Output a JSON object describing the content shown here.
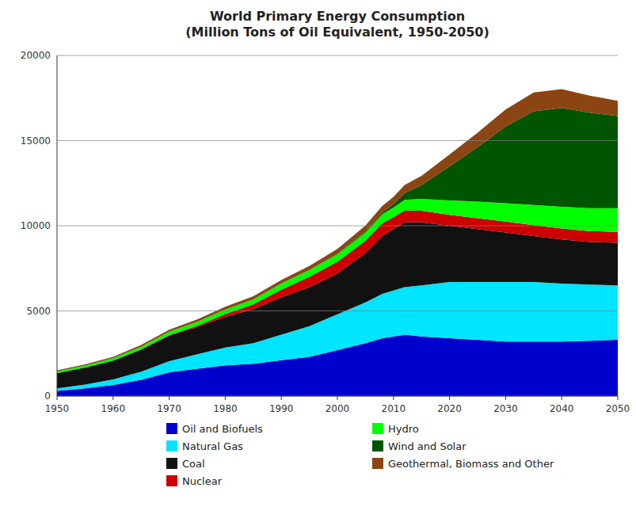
{
  "chart_data": {
    "type": "area",
    "stacked": true,
    "title": "World Primary Energy Consumption\n(Million Tons of Oil Equivalent, 1950-2050)",
    "x": [
      1950,
      1955,
      1960,
      1965,
      1970,
      1975,
      1980,
      1985,
      1990,
      1995,
      2000,
      2005,
      2008,
      2010,
      2012,
      2015,
      2020,
      2025,
      2030,
      2035,
      2040,
      2045,
      2050
    ],
    "series": [
      {
        "name": "Oil and Biofuels",
        "color": "#0000CC",
        "values": [
          300,
          450,
          650,
          950,
          1400,
          1600,
          1800,
          1900,
          2100,
          2300,
          2700,
          3100,
          3400,
          3500,
          3600,
          3500,
          3400,
          3300,
          3200,
          3200,
          3200,
          3250,
          3300
        ]
      },
      {
        "name": "Natural Gas",
        "color": "#00E5FF",
        "values": [
          150,
          220,
          330,
          480,
          650,
          850,
          1050,
          1200,
          1500,
          1800,
          2100,
          2400,
          2600,
          2700,
          2800,
          3000,
          3300,
          3400,
          3500,
          3500,
          3400,
          3300,
          3200
        ]
      },
      {
        "name": "Coal",
        "color": "#111111",
        "values": [
          900,
          1000,
          1100,
          1300,
          1500,
          1600,
          1800,
          2000,
          2200,
          2300,
          2400,
          2900,
          3400,
          3600,
          3800,
          3700,
          3300,
          3100,
          2900,
          2700,
          2600,
          2500,
          2500
        ]
      },
      {
        "name": "Nuclear",
        "color": "#CC0000",
        "values": [
          0,
          0,
          5,
          10,
          30,
          80,
          160,
          280,
          450,
          600,
          680,
          720,
          740,
          700,
          700,
          680,
          640,
          640,
          640,
          640,
          640,
          640,
          640
        ]
      },
      {
        "name": "Hydro",
        "color": "#00FF00",
        "values": [
          100,
          120,
          140,
          160,
          200,
          230,
          270,
          300,
          360,
          400,
          450,
          490,
          530,
          570,
          620,
          700,
          850,
          980,
          1080,
          1180,
          1280,
          1350,
          1400
        ]
      },
      {
        "name": "Wind and Solar",
        "color": "#005500",
        "values": [
          0,
          0,
          0,
          0,
          0,
          0,
          0,
          0,
          5,
          10,
          25,
          70,
          110,
          200,
          400,
          800,
          2000,
          3200,
          4500,
          5500,
          5800,
          5600,
          5400
        ]
      },
      {
        "name": "Geothermal, Biomass and Other",
        "color": "#8B4513",
        "values": [
          60,
          70,
          80,
          100,
          120,
          140,
          160,
          180,
          200,
          230,
          280,
          330,
          380,
          430,
          480,
          550,
          700,
          850,
          1000,
          1100,
          1100,
          1000,
          900
        ]
      }
    ],
    "xlim": [
      1950,
      2050
    ],
    "xticks": [
      1950,
      1960,
      1970,
      1980,
      1990,
      2000,
      2010,
      2020,
      2030,
      2040,
      2050
    ],
    "ylim": [
      0,
      20000
    ],
    "yticks": [
      0,
      5000,
      10000,
      15000,
      20000
    ],
    "grid": true,
    "legend": "bottom"
  }
}
